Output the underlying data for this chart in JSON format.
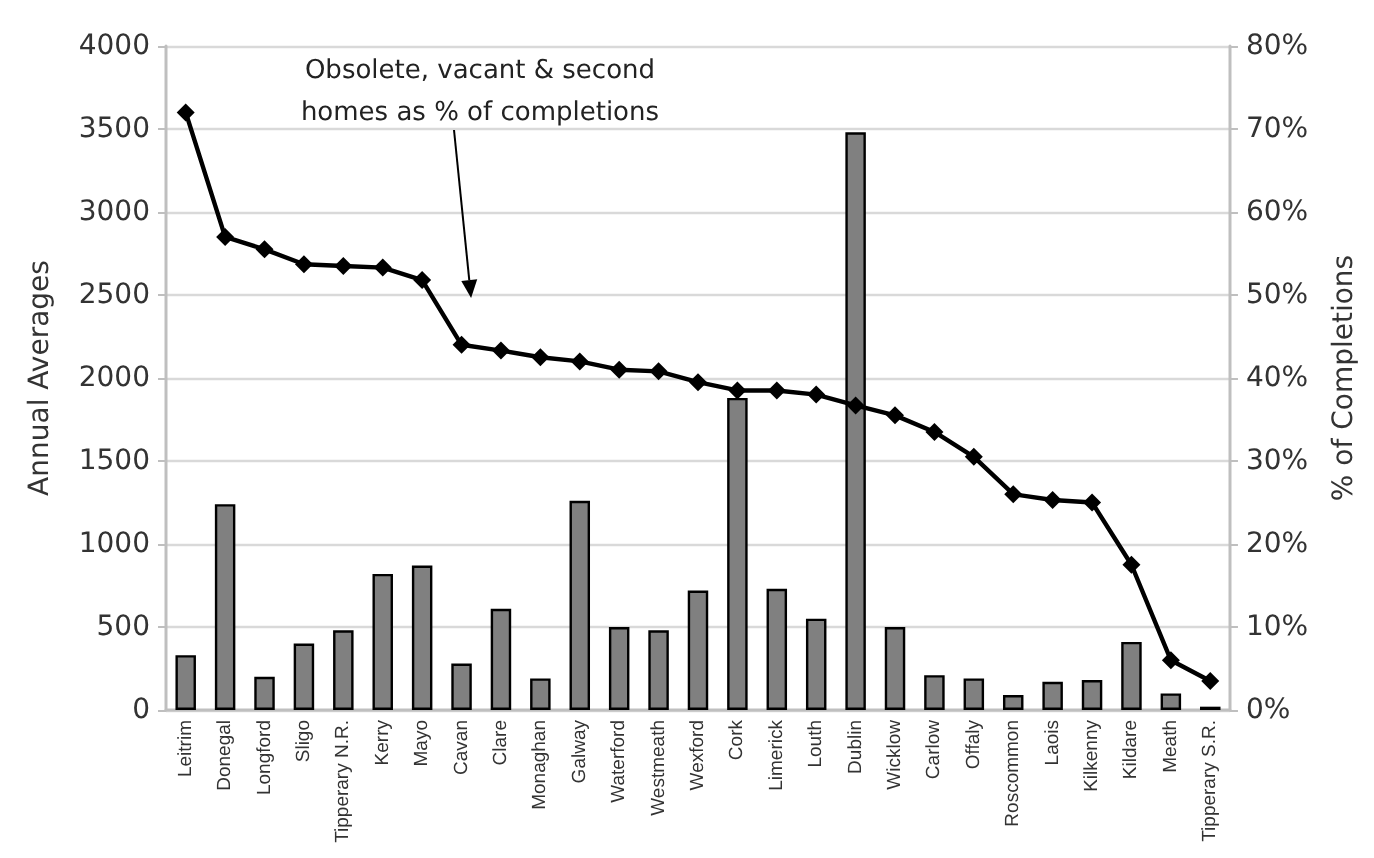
{
  "chart_data": {
    "type": "bar",
    "categories": [
      "Leitrim",
      "Donegal",
      "Longford",
      "Sligo",
      "Tipperary N.R.",
      "Kerry",
      "Mayo",
      "Cavan",
      "Clare",
      "Monaghan",
      "Galway",
      "Waterford",
      "Westmeath",
      "Wexford",
      "Cork",
      "Limerick",
      "Louth",
      "Dublin",
      "Wicklow",
      "Carlow",
      "Offaly",
      "Roscommon",
      "Laois",
      "Kilkenny",
      "Kildare",
      "Meath",
      "Tipperary S.R."
    ],
    "series": [
      {
        "color": "#808080",
        "values": [
          330,
          1240,
          200,
          400,
          480,
          820,
          870,
          280,
          610,
          190,
          1260,
          500,
          480,
          720,
          1880,
          730,
          550,
          3480,
          500,
          210,
          190,
          90,
          170,
          180,
          410,
          100,
          20
        ]
      },
      {
        "type": "line",
        "axis": "y2",
        "color": "#000000",
        "values": [
          72,
          57,
          55.5,
          53.7,
          53.5,
          53.3,
          51.8,
          44,
          43.3,
          42.5,
          42,
          41,
          40.8,
          39.5,
          38.5,
          38.5,
          38,
          36.7,
          35.5,
          33.5,
          30.5,
          26,
          25.3,
          25,
          17.5,
          6,
          3.5
        ]
      }
    ],
    "ylabel": "Annual Averages",
    "y2label": "% of Completions",
    "ylim": [
      0,
      4000
    ],
    "yticks": [
      0,
      500,
      1000,
      1500,
      2000,
      2500,
      3000,
      3500,
      4000
    ],
    "y2lim": [
      0,
      80
    ],
    "y2ticks": [
      {
        "value": 0,
        "label": "0%"
      },
      {
        "value": 10,
        "label": "10%"
      },
      {
        "value": 20,
        "label": "20%"
      },
      {
        "value": 30,
        "label": "30%"
      },
      {
        "value": 40,
        "label": "40%"
      },
      {
        "value": 50,
        "label": "50%"
      },
      {
        "value": 60,
        "label": "60%"
      },
      {
        "value": 70,
        "label": "70%"
      },
      {
        "value": 80,
        "label": "80%"
      }
    ],
    "grid": "y",
    "marker": "diamond",
    "annotations": [
      "Obsolete, vacant & second homes as % of completions"
    ]
  }
}
